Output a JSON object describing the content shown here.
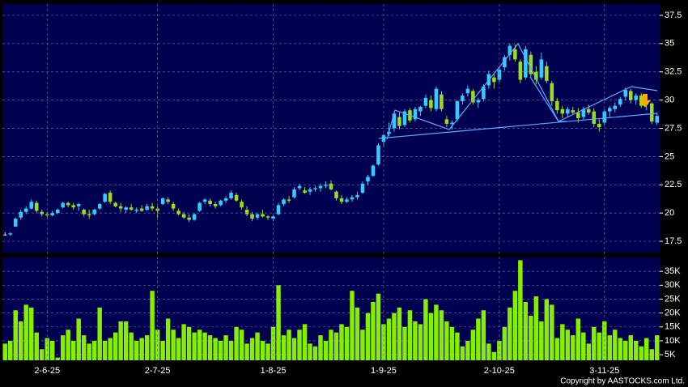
{
  "chart_data": [
    {
      "type": "candlestick",
      "up_color": "#33ccff",
      "down_color": "#99dd22",
      "ylim": [
        16.5,
        38.5
      ],
      "yticks": [
        17.5,
        20,
        22.5,
        25,
        27.5,
        30,
        32.5,
        35,
        37.5
      ],
      "grid": true,
      "open": [
        18.1,
        18.1,
        18.8,
        19.6,
        20.1,
        20.4,
        20.9,
        20.1,
        19.9,
        19.8,
        20.0,
        20.5,
        20.9,
        20.7,
        20.6,
        20.3,
        19.9,
        19.9,
        20.4,
        21.0,
        21.8,
        20.9,
        20.6,
        20.3,
        20.5,
        20.2,
        20.4,
        20.3,
        20.6,
        20.4,
        20.8,
        21.2,
        20.8,
        20.2,
        19.9,
        19.6,
        19.4,
        20.2,
        21.0,
        21.1,
        20.8,
        20.7,
        21.1,
        21.3,
        21.6,
        21.0,
        20.3,
        19.9,
        19.6,
        19.9,
        19.7,
        19.5,
        19.9,
        20.8,
        21.2,
        21.4,
        22.2,
        22.0,
        21.9,
        22.1,
        22.2,
        22.4,
        22.6,
        21.9,
        21.3,
        21.0,
        21.2,
        21.4,
        21.8,
        22.8,
        23.3,
        24.3,
        26.3,
        27.0,
        27.5,
        28.5,
        27.8,
        29.1,
        28.3,
        29.0,
        29.5,
        30.0,
        29.2,
        30.5,
        28.3,
        27.9,
        28.3,
        29.9,
        30.6,
        30.8,
        29.8,
        30.1,
        31.3,
        32.0,
        31.8,
        32.9,
        34.0,
        34.5,
        33.4,
        32.0,
        34.0,
        32.5,
        32.0,
        33.0,
        31.5,
        29.9,
        29.2,
        28.8,
        29.1,
        28.9,
        28.5,
        29.2,
        29.0,
        27.9,
        28.0,
        29.0,
        29.2,
        29.6,
        30.3,
        30.8,
        30.0,
        30.4,
        29.6,
        29.7,
        28.0
      ],
      "high": [
        18.3,
        18.3,
        19.6,
        20.3,
        20.6,
        21.2,
        21.1,
        20.3,
        20.1,
        20.2,
        20.4,
        21.0,
        21.0,
        20.9,
        20.9,
        20.4,
        20.3,
        20.4,
        20.9,
        21.8,
        22.0,
        21.0,
        20.9,
        20.6,
        20.8,
        20.5,
        20.7,
        20.8,
        20.9,
        20.6,
        21.4,
        21.4,
        21.0,
        20.4,
        20.1,
        19.9,
        20.0,
        21.0,
        21.3,
        21.3,
        21.0,
        21.2,
        21.5,
        22.0,
        21.8,
        21.2,
        20.6,
        20.1,
        20.0,
        20.3,
        19.8,
        19.8,
        20.9,
        21.3,
        21.5,
        22.3,
        22.6,
        22.3,
        22.3,
        22.4,
        22.6,
        22.8,
        22.9,
        22.0,
        21.6,
        21.4,
        21.6,
        21.9,
        22.8,
        23.4,
        24.3,
        26.2,
        27.0,
        28.0,
        29.0,
        28.9,
        29.2,
        29.3,
        29.4,
        29.5,
        30.5,
        30.4,
        31.2,
        30.8,
        28.6,
        28.2,
        30.0,
        30.6,
        31.3,
        31.0,
        30.2,
        31.4,
        32.6,
        32.3,
        32.9,
        34.0,
        35.0,
        34.9,
        33.6,
        34.8,
        34.3,
        33.0,
        34.2,
        33.4,
        31.7,
        30.2,
        29.5,
        29.4,
        29.4,
        29.3,
        29.4,
        29.6,
        29.3,
        28.3,
        29.2,
        29.5,
        29.8,
        30.3,
        31.1,
        31.0,
        30.6,
        30.6,
        30.0,
        29.8,
        28.9
      ],
      "low": [
        18.0,
        18.0,
        18.8,
        19.4,
        19.9,
        20.3,
        20.0,
        19.7,
        19.6,
        19.7,
        19.9,
        20.4,
        20.5,
        20.3,
        20.2,
        19.7,
        19.5,
        19.8,
        20.3,
        20.9,
        20.8,
        20.5,
        20.1,
        20.0,
        20.2,
        20.0,
        20.1,
        20.2,
        20.2,
        19.6,
        20.7,
        20.8,
        20.2,
        19.8,
        19.5,
        19.2,
        19.3,
        20.1,
        20.8,
        20.6,
        20.4,
        20.6,
        20.9,
        21.2,
        21.0,
        20.3,
        19.7,
        19.3,
        19.4,
        19.6,
        19.4,
        19.3,
        19.8,
        20.6,
        20.9,
        21.3,
        22.0,
        21.7,
        21.6,
        21.9,
        21.9,
        22.2,
        22.0,
        21.1,
        20.8,
        20.9,
        21.0,
        21.2,
        21.7,
        22.5,
        23.2,
        24.2,
        25.8,
        26.8,
        27.2,
        27.4,
        27.6,
        28.0,
        28.1,
        28.6,
        29.3,
        29.0,
        29.0,
        29.0,
        27.6,
        27.4,
        28.1,
        29.6,
        30.3,
        29.6,
        29.3,
        29.9,
        31.0,
        31.0,
        31.6,
        32.6,
        33.5,
        33.4,
        31.5,
        31.8,
        32.0,
        31.4,
        31.8,
        31.5,
        29.5,
        28.8,
        28.4,
        28.5,
        28.7,
        28.0,
        28.3,
        28.7,
        27.6,
        27.2,
        27.8,
        28.5,
        28.9,
        29.4,
        30.0,
        29.7,
        29.6,
        29.3,
        29.1,
        27.9,
        27.8
      ],
      "close": [
        18.1,
        18.2,
        19.5,
        20.1,
        20.4,
        21.0,
        20.2,
        19.9,
        19.8,
        20.0,
        20.3,
        20.9,
        20.7,
        20.5,
        20.8,
        19.9,
        19.8,
        20.3,
        20.8,
        21.7,
        21.0,
        20.6,
        20.4,
        20.5,
        20.3,
        20.3,
        20.2,
        20.6,
        20.4,
        20.2,
        21.3,
        21.0,
        20.4,
        19.9,
        19.6,
        19.4,
        19.9,
        20.9,
        21.2,
        20.8,
        20.6,
        21.1,
        21.3,
        21.8,
        21.1,
        20.5,
        19.9,
        19.5,
        19.9,
        19.7,
        19.6,
        19.7,
        20.7,
        21.2,
        21.1,
        22.1,
        22.4,
        21.8,
        22.1,
        22.2,
        22.4,
        22.5,
        22.1,
        21.3,
        21.0,
        21.2,
        21.4,
        21.6,
        22.6,
        23.2,
        24.2,
        26.0,
        26.9,
        27.2,
        28.8,
        27.7,
        29.0,
        28.2,
        29.2,
        29.4,
        30.2,
        29.3,
        31.0,
        29.2,
        27.9,
        28.0,
        29.9,
        30.4,
        31.0,
        29.8,
        30.0,
        31.2,
        32.3,
        31.6,
        32.7,
        33.8,
        34.8,
        33.6,
        31.8,
        34.5,
        32.3,
        31.8,
        33.6,
        31.7,
        29.9,
        29.1,
        28.8,
        29.2,
        28.9,
        28.4,
        29.2,
        28.9,
        27.9,
        27.6,
        29.0,
        29.3,
        29.5,
        30.1,
        30.9,
        30.0,
        30.4,
        29.5,
        29.8,
        28.1,
        28.6
      ]
    },
    {
      "type": "bar",
      "color": "#88ee00",
      "ylim": [
        3000,
        40000
      ],
      "yticks": [
        {
          "value": 5000,
          "label": "5K"
        },
        {
          "value": 10000,
          "label": "10K"
        },
        {
          "value": 15000,
          "label": "15K"
        },
        {
          "value": 20000,
          "label": "20K"
        },
        {
          "value": 25000,
          "label": "25K"
        },
        {
          "value": 30000,
          "label": "30K"
        },
        {
          "value": 35000,
          "label": "35K"
        }
      ],
      "grid": true,
      "categories": [
        null,
        null,
        null,
        null,
        null,
        null,
        null,
        null,
        "2-6-25",
        null,
        null,
        null,
        null,
        null,
        null,
        null,
        null,
        null,
        null,
        null,
        null,
        null,
        null,
        null,
        null,
        null,
        null,
        null,
        null,
        "2-7-25",
        null,
        null,
        null,
        null,
        null,
        null,
        null,
        null,
        null,
        null,
        null,
        null,
        null,
        null,
        null,
        null,
        null,
        null,
        null,
        null,
        null,
        "1-8-25",
        null,
        null,
        null,
        null,
        null,
        null,
        null,
        null,
        null,
        null,
        null,
        null,
        null,
        null,
        null,
        null,
        null,
        null,
        null,
        null,
        "1-9-25",
        null,
        null,
        null,
        null,
        null,
        null,
        null,
        null,
        null,
        null,
        null,
        null,
        null,
        null,
        null,
        null,
        null,
        null,
        null,
        null,
        null,
        "2-10-25",
        null,
        null,
        null,
        null,
        null,
        null,
        null,
        null,
        null,
        null,
        null,
        null,
        null,
        null,
        null,
        null,
        null,
        null,
        null,
        "3-11-25",
        null,
        null,
        null,
        null,
        null,
        null,
        null,
        null,
        null,
        null
      ],
      "values": [
        9000,
        10000,
        21000,
        17000,
        23000,
        22000,
        13000,
        7000,
        11000,
        10000,
        4000,
        12000,
        14000,
        10000,
        18000,
        12000,
        9000,
        10000,
        22000,
        10000,
        11000,
        13000,
        17000,
        17000,
        13000,
        10000,
        11000,
        12000,
        28000,
        14000,
        10000,
        18000,
        14000,
        11000,
        16000,
        15000,
        13000,
        14000,
        13000,
        12000,
        11000,
        10000,
        12000,
        10000,
        15000,
        14000,
        9000,
        11000,
        13000,
        10000,
        9000,
        15000,
        30000,
        12000,
        14000,
        11000,
        14000,
        16000,
        9000,
        8000,
        12000,
        10000,
        14000,
        13000,
        16000,
        15000,
        28000,
        22000,
        14000,
        20000,
        24000,
        27000,
        16000,
        18000,
        20000,
        22000,
        15000,
        21000,
        17000,
        16000,
        25000,
        20000,
        23000,
        21000,
        17000,
        15000,
        13000,
        8000,
        10000,
        14000,
        18000,
        21000,
        9000,
        6000,
        10000,
        15000,
        22000,
        28000,
        39000,
        24000,
        19000,
        26000,
        17000,
        25000,
        23000,
        11000,
        16000,
        14000,
        12000,
        18000,
        13000,
        9000,
        15000,
        13000,
        17000,
        12000,
        14000,
        11000,
        10000,
        12000,
        10000,
        8000,
        11000,
        7000,
        12000
      ]
    }
  ],
  "copyright": "Copyright by AASTOCKS.com Ltd."
}
